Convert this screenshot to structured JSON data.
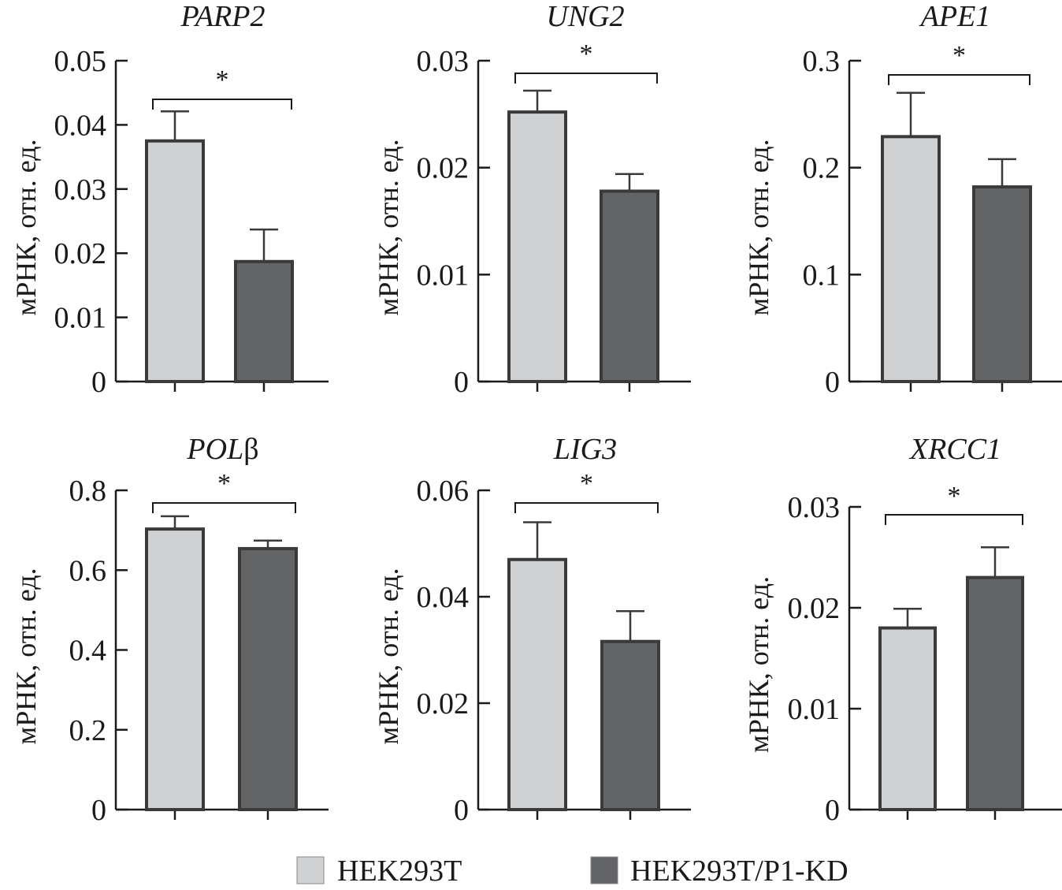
{
  "chart_data": [
    {
      "type": "bar",
      "title": "PARP2",
      "ylabel": "мРНК, отн. ед.",
      "xlabel": "",
      "ylim": [
        0,
        0.05
      ],
      "yticks": [
        "0",
        "0.01",
        "0.02",
        "0.03",
        "0.04",
        "0.05"
      ],
      "ytick_values": [
        0,
        0.01,
        0.02,
        0.03,
        0.04,
        0.05
      ],
      "categories": [
        "HEK293T",
        "HEK293T/P1-KD"
      ],
      "values": [
        0.0375,
        0.0187
      ],
      "errors": [
        0.0046,
        0.005
      ],
      "significance": "*"
    },
    {
      "type": "bar",
      "title": "UNG2",
      "ylabel": "мРНК, отн. ед.",
      "xlabel": "",
      "ylim": [
        0,
        0.03
      ],
      "yticks": [
        "0",
        "0.01",
        "0.02",
        "0.03"
      ],
      "ytick_values": [
        0,
        0.01,
        0.02,
        0.03
      ],
      "categories": [
        "HEK293T",
        "HEK293T/P1-KD"
      ],
      "values": [
        0.0252,
        0.0178
      ],
      "errors": [
        0.002,
        0.0016
      ],
      "significance": "*"
    },
    {
      "type": "bar",
      "title": "APE1",
      "ylabel": "мРНК, отн. ед.",
      "xlabel": "",
      "ylim": [
        0,
        0.3
      ],
      "yticks": [
        "0",
        "0.1",
        "0.2",
        "0.3"
      ],
      "ytick_values": [
        0,
        0.1,
        0.2,
        0.3
      ],
      "categories": [
        "HEK293T",
        "HEK293T/P1-KD"
      ],
      "values": [
        0.229,
        0.182
      ],
      "errors": [
        0.041,
        0.026
      ],
      "significance": "*"
    },
    {
      "type": "bar",
      "title": "POLβ",
      "title_italic_part": "POL",
      "title_plain_part": "β",
      "ylabel": "мРНК, отн. ед.",
      "xlabel": "",
      "ylim": [
        0,
        0.8
      ],
      "yticks": [
        "0",
        "0.2",
        "0.4",
        "0.6",
        "0.8"
      ],
      "ytick_values": [
        0,
        0.2,
        0.4,
        0.6,
        0.8
      ],
      "categories": [
        "HEK293T",
        "HEK293T/P1-KD"
      ],
      "values": [
        0.703,
        0.654
      ],
      "errors": [
        0.032,
        0.02
      ],
      "significance": "*"
    },
    {
      "type": "bar",
      "title": "LIG3",
      "ylabel": "мРНК, отн. ед.",
      "xlabel": "",
      "ylim": [
        0,
        0.06
      ],
      "yticks": [
        "0",
        "0.02",
        "0.04",
        "0.06"
      ],
      "ytick_values": [
        0,
        0.02,
        0.04,
        0.06
      ],
      "categories": [
        "HEK293T",
        "HEK293T/P1-KD"
      ],
      "values": [
        0.047,
        0.0316
      ],
      "errors": [
        0.007,
        0.0057
      ],
      "significance": "*"
    },
    {
      "type": "bar",
      "title": "XRCC1",
      "ylabel": "мРНК, отн. ед.",
      "xlabel": "",
      "ylim": [
        0,
        0.03
      ],
      "yticks": [
        "0",
        "0.01",
        "0.02",
        "0.03"
      ],
      "ytick_values": [
        0,
        0.01,
        0.02,
        0.03
      ],
      "categories": [
        "HEK293T",
        "HEK293T/P1-KD"
      ],
      "values": [
        0.018,
        0.023
      ],
      "errors": [
        0.0019,
        0.003
      ],
      "significance": "*"
    }
  ],
  "legend": {
    "placement": "bottom-center",
    "items": [
      {
        "label": "HEK293T",
        "color": "#d0d1d3"
      },
      {
        "label": "HEK293T/P1-KD",
        "color": "#636466"
      }
    ]
  },
  "colors": {
    "bar_outline": "#3a3a3a",
    "axis": "#1a1a1a",
    "error_bar": "#3a3a3a"
  }
}
